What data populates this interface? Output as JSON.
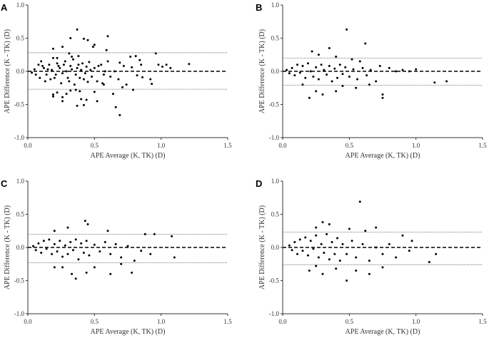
{
  "chart_data": [
    {
      "type": "scatter",
      "panel": "A",
      "xlabel": "APE Average (K,  TK) (D)",
      "ylabel": "APE Difference (K - TK) (D)",
      "xlim": [
        0,
        1.5
      ],
      "ylim": [
        -1,
        1
      ],
      "xticks": [
        "0.0",
        "0.5",
        "1.0",
        "1.5"
      ],
      "yticks": [
        "1.0",
        "0.5",
        "0.0",
        "-0.5",
        "-1.0"
      ],
      "mean": 0,
      "upper_loa": 0.28,
      "lower_loa": -0.27,
      "points": [
        [
          0.37,
          0.63
        ],
        [
          0.32,
          0.5
        ],
        [
          0.42,
          0.49
        ],
        [
          0.45,
          0.47
        ],
        [
          0.6,
          0.53
        ],
        [
          0.5,
          0.4
        ],
        [
          0.49,
          0.37
        ],
        [
          0.26,
          0.37
        ],
        [
          0.19,
          0.34
        ],
        [
          0.59,
          0.32
        ],
        [
          0.96,
          0.27
        ],
        [
          0.31,
          0.27
        ],
        [
          0.33,
          0.22
        ],
        [
          0.22,
          0.2
        ],
        [
          0.38,
          0.23
        ],
        [
          0.77,
          0.22
        ],
        [
          0.81,
          0.23
        ],
        [
          0.84,
          0.17
        ],
        [
          0.6,
          0.15
        ],
        [
          0.69,
          0.13
        ],
        [
          0.98,
          0.1
        ],
        [
          1.04,
          0.1
        ],
        [
          1.21,
          0.11
        ],
        [
          1.01,
          0.07
        ],
        [
          1.07,
          0.05
        ],
        [
          0.85,
          0.1
        ],
        [
          0.72,
          0.08
        ],
        [
          0.78,
          0.06
        ],
        [
          0.05,
          0.03
        ],
        [
          0.08,
          0.1
        ],
        [
          0.1,
          0.15
        ],
        [
          0.12,
          0.05
        ],
        [
          0.14,
          -0.05
        ],
        [
          0.16,
          0.1
        ],
        [
          0.18,
          0.02
        ],
        [
          0.2,
          -0.1
        ],
        [
          0.22,
          0.12
        ],
        [
          0.24,
          0.05
        ],
        [
          0.26,
          -0.03
        ],
        [
          0.28,
          0.15
        ],
        [
          0.3,
          -0.1
        ],
        [
          0.32,
          0.08
        ],
        [
          0.34,
          0.18
        ],
        [
          0.36,
          -0.05
        ],
        [
          0.38,
          0.1
        ],
        [
          0.4,
          0.02
        ],
        [
          0.42,
          -0.12
        ],
        [
          0.44,
          0.07
        ],
        [
          0.46,
          0.14
        ],
        [
          0.48,
          -0.08
        ],
        [
          0.5,
          0.05
        ],
        [
          0.52,
          -0.15
        ],
        [
          0.55,
          0.1
        ],
        [
          0.57,
          -0.05
        ],
        [
          0.03,
          -0.02
        ],
        [
          0.06,
          -0.05
        ],
        [
          0.09,
          -0.1
        ],
        [
          0.11,
          0.08
        ],
        [
          0.13,
          -0.15
        ],
        [
          0.15,
          0.03
        ],
        [
          0.17,
          -0.12
        ],
        [
          0.19,
          0.2
        ],
        [
          0.21,
          -0.05
        ],
        [
          0.23,
          0.08
        ],
        [
          0.25,
          -0.18
        ],
        [
          0.27,
          0.1
        ],
        [
          0.29,
          0.0
        ],
        [
          0.31,
          -0.15
        ],
        [
          0.33,
          0.03
        ],
        [
          0.35,
          -0.2
        ],
        [
          0.37,
          0.05
        ],
        [
          0.39,
          -0.1
        ],
        [
          0.41,
          0.12
        ],
        [
          0.43,
          -0.03
        ],
        [
          0.45,
          -0.16
        ],
        [
          0.47,
          0.02
        ],
        [
          0.53,
          0.08
        ],
        [
          0.56,
          -0.18
        ],
        [
          0.58,
          0.0
        ],
        [
          0.62,
          -0.08
        ],
        [
          0.65,
          0.0
        ],
        [
          0.68,
          -0.12
        ],
        [
          0.71,
          -0.24
        ],
        [
          0.74,
          -0.2
        ],
        [
          0.79,
          -0.28
        ],
        [
          0.82,
          -0.06
        ],
        [
          0.86,
          -0.09
        ],
        [
          0.92,
          -0.12
        ],
        [
          0.93,
          -0.19
        ],
        [
          0.64,
          -0.34
        ],
        [
          0.66,
          -0.54
        ],
        [
          0.69,
          -0.66
        ],
        [
          0.52,
          -0.45
        ],
        [
          0.42,
          -0.51
        ],
        [
          0.37,
          -0.52
        ],
        [
          0.4,
          -0.42
        ],
        [
          0.44,
          -0.43
        ],
        [
          0.26,
          -0.45
        ],
        [
          0.26,
          -0.39
        ],
        [
          0.19,
          -0.38
        ],
        [
          0.19,
          -0.35
        ],
        [
          0.22,
          -0.32
        ],
        [
          0.29,
          -0.34
        ],
        [
          0.5,
          -0.31
        ],
        [
          0.57,
          -0.2
        ],
        [
          0.32,
          -0.29
        ],
        [
          0.39,
          -0.3
        ],
        [
          0.36,
          -0.28
        ]
      ]
    },
    {
      "type": "scatter",
      "panel": "B",
      "xlabel": "APE Average (K,  TK) (D)",
      "ylabel": "APE Difference (K - TK) (D)",
      "xlim": [
        0,
        1.5
      ],
      "ylim": [
        -1,
        1
      ],
      "xticks": [
        "0.0",
        "0.5",
        "1.0",
        "1.5"
      ],
      "yticks": [
        "1.0",
        "0.5",
        "0.0",
        "-0.5",
        "-1.0"
      ],
      "mean": 0,
      "upper_loa": 0.2,
      "lower_loa": -0.21,
      "points": [
        [
          0.48,
          0.63
        ],
        [
          0.62,
          0.42
        ],
        [
          0.35,
          0.35
        ],
        [
          0.22,
          0.3
        ],
        [
          0.27,
          0.25
        ],
        [
          0.4,
          0.22
        ],
        [
          0.52,
          0.18
        ],
        [
          0.58,
          0.15
        ],
        [
          0.03,
          0.02
        ],
        [
          0.05,
          -0.03
        ],
        [
          0.07,
          0.05
        ],
        [
          0.09,
          -0.06
        ],
        [
          0.11,
          0.1
        ],
        [
          0.13,
          -0.02
        ],
        [
          0.15,
          0.08
        ],
        [
          0.17,
          -0.1
        ],
        [
          0.19,
          0.12
        ],
        [
          0.21,
          0.0
        ],
        [
          0.23,
          -0.08
        ],
        [
          0.25,
          0.06
        ],
        [
          0.27,
          -0.12
        ],
        [
          0.29,
          0.1
        ],
        [
          0.31,
          0.02
        ],
        [
          0.33,
          -0.05
        ],
        [
          0.35,
          0.08
        ],
        [
          0.37,
          -0.15
        ],
        [
          0.39,
          0.04
        ],
        [
          0.41,
          -0.1
        ],
        [
          0.43,
          0.1
        ],
        [
          0.45,
          -0.04
        ],
        [
          0.47,
          0.06
        ],
        [
          0.5,
          -0.08
        ],
        [
          0.53,
          0.03
        ],
        [
          0.56,
          -0.12
        ],
        [
          0.6,
          0.05
        ],
        [
          0.63,
          -0.06
        ],
        [
          0.66,
          0.02
        ],
        [
          0.7,
          -0.15
        ],
        [
          0.73,
          0.08
        ],
        [
          0.75,
          -0.35
        ],
        [
          0.75,
          -0.4
        ],
        [
          0.8,
          0.05
        ],
        [
          0.85,
          0.0
        ],
        [
          0.9,
          0.02
        ],
        [
          0.95,
          0.0
        ],
        [
          1.0,
          0.03
        ],
        [
          1.14,
          -0.17
        ],
        [
          1.23,
          -0.15
        ],
        [
          0.2,
          -0.4
        ],
        [
          0.3,
          -0.35
        ],
        [
          0.25,
          -0.3
        ],
        [
          0.4,
          -0.3
        ],
        [
          0.55,
          -0.25
        ],
        [
          0.15,
          -0.2
        ],
        [
          0.45,
          -0.22
        ],
        [
          0.65,
          -0.2
        ]
      ]
    },
    {
      "type": "scatter",
      "panel": "C",
      "xlabel": "APE Average (K, TK)  (D)",
      "ylabel": "APE Difference (K - TK) (D)",
      "xlim": [
        0,
        1.5
      ],
      "ylim": [
        -1,
        1
      ],
      "xticks": [
        "0.0",
        "0.5",
        "1.0",
        "1.5"
      ],
      "yticks": [
        "1.0",
        "0.5",
        "0.0",
        "-0.5",
        "-1.0"
      ],
      "mean": 0,
      "upper_loa": 0.2,
      "lower_loa": -0.23,
      "points": [
        [
          0.43,
          0.4
        ],
        [
          0.45,
          0.35
        ],
        [
          0.3,
          0.3
        ],
        [
          0.6,
          0.25
        ],
        [
          0.2,
          0.25
        ],
        [
          0.88,
          0.2
        ],
        [
          0.95,
          0.2
        ],
        [
          1.08,
          0.17
        ],
        [
          0.04,
          0.02
        ],
        [
          0.06,
          -0.04
        ],
        [
          0.08,
          0.06
        ],
        [
          0.1,
          -0.08
        ],
        [
          0.12,
          0.1
        ],
        [
          0.14,
          -0.02
        ],
        [
          0.16,
          0.12
        ],
        [
          0.18,
          -0.1
        ],
        [
          0.2,
          0.05
        ],
        [
          0.22,
          -0.06
        ],
        [
          0.24,
          0.1
        ],
        [
          0.26,
          -0.14
        ],
        [
          0.28,
          0.03
        ],
        [
          0.3,
          -0.1
        ],
        [
          0.32,
          0.08
        ],
        [
          0.34,
          -0.04
        ],
        [
          0.36,
          0.12
        ],
        [
          0.38,
          -0.18
        ],
        [
          0.4,
          0.06
        ],
        [
          0.42,
          -0.08
        ],
        [
          0.44,
          0.1
        ],
        [
          0.46,
          -0.12
        ],
        [
          0.5,
          0.04
        ],
        [
          0.54,
          -0.06
        ],
        [
          0.58,
          0.08
        ],
        [
          0.62,
          -0.1
        ],
        [
          0.66,
          0.05
        ],
        [
          0.7,
          -0.15
        ],
        [
          0.75,
          0.02
        ],
        [
          0.8,
          -0.2
        ],
        [
          0.85,
          -0.05
        ],
        [
          0.92,
          -0.1
        ],
        [
          1.1,
          -0.15
        ],
        [
          0.36,
          -0.47
        ],
        [
          0.33,
          -0.4
        ],
        [
          0.44,
          -0.38
        ],
        [
          0.62,
          -0.4
        ],
        [
          0.78,
          -0.38
        ],
        [
          0.2,
          -0.3
        ],
        [
          0.26,
          -0.3
        ],
        [
          0.5,
          -0.3
        ],
        [
          0.7,
          -0.25
        ]
      ]
    },
    {
      "type": "scatter",
      "panel": "D",
      "xlabel": "APE Average (K, TK)  (D)",
      "ylabel": "APE Difference (K - TK) (D)",
      "xlim": [
        0,
        1.5
      ],
      "ylim": [
        -1,
        1
      ],
      "xticks": [
        "0.0",
        "0.5",
        "1.0",
        "1.5"
      ],
      "yticks": [
        "1.0",
        "0.5",
        "0.0",
        "-0.5",
        "-1.0"
      ],
      "mean": 0,
      "upper_loa": 0.23,
      "lower_loa": -0.26,
      "points": [
        [
          0.58,
          0.69
        ],
        [
          0.3,
          0.38
        ],
        [
          0.35,
          0.35
        ],
        [
          0.25,
          0.3
        ],
        [
          0.5,
          0.28
        ],
        [
          0.7,
          0.3
        ],
        [
          0.62,
          0.25
        ],
        [
          0.9,
          0.18
        ],
        [
          0.97,
          0.1
        ],
        [
          0.05,
          0.03
        ],
        [
          0.07,
          -0.04
        ],
        [
          0.09,
          0.08
        ],
        [
          0.11,
          -0.1
        ],
        [
          0.13,
          0.12
        ],
        [
          0.15,
          -0.05
        ],
        [
          0.17,
          0.15
        ],
        [
          0.19,
          -0.12
        ],
        [
          0.21,
          0.1
        ],
        [
          0.23,
          -0.02
        ],
        [
          0.25,
          0.18
        ],
        [
          0.27,
          -0.15
        ],
        [
          0.29,
          0.05
        ],
        [
          0.31,
          -0.08
        ],
        [
          0.33,
          0.2
        ],
        [
          0.35,
          -0.18
        ],
        [
          0.37,
          0.08
        ],
        [
          0.39,
          -0.1
        ],
        [
          0.41,
          0.14
        ],
        [
          0.43,
          -0.2
        ],
        [
          0.45,
          0.05
        ],
        [
          0.48,
          -0.1
        ],
        [
          0.52,
          0.1
        ],
        [
          0.55,
          -0.15
        ],
        [
          0.6,
          0.05
        ],
        [
          0.65,
          -0.2
        ],
        [
          0.7,
          0.0
        ],
        [
          0.75,
          -0.1
        ],
        [
          0.8,
          0.05
        ],
        [
          0.85,
          -0.15
        ],
        [
          0.95,
          -0.05
        ],
        [
          1.1,
          -0.22
        ],
        [
          1.15,
          -0.1
        ],
        [
          0.48,
          -0.5
        ],
        [
          0.2,
          -0.35
        ],
        [
          0.3,
          -0.4
        ],
        [
          0.4,
          -0.32
        ],
        [
          0.55,
          -0.35
        ],
        [
          0.65,
          -0.4
        ],
        [
          0.25,
          -0.28
        ],
        [
          0.75,
          -0.3
        ]
      ]
    }
  ]
}
